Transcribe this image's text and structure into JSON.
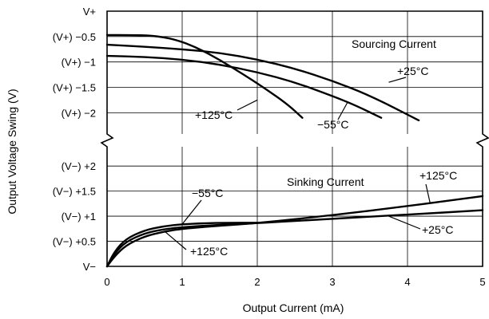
{
  "chart_data": {
    "type": "line",
    "xlabel": "Output Current (mA)",
    "ylabel": "Output Voltage Swing (V)",
    "x_ticks": [
      "0",
      "1",
      "2",
      "3",
      "4",
      "5"
    ],
    "xlim": [
      0,
      5
    ],
    "axis_break": true,
    "grid": true,
    "panels": [
      {
        "name": "sourcing",
        "label": "Sourcing Current",
        "y_ticks": [
          "V+",
          "(V+) −0.5",
          "(V+) −1",
          "(V+) −1.5",
          "(V+) −2"
        ],
        "ylim": [
          -2.45,
          0
        ],
        "series": [
          {
            "name": "+125°C",
            "x": [
              0,
              0.3,
              0.6,
              0.9,
              1.2,
              1.5,
              1.8,
              2.1,
              2.4,
              2.6
            ],
            "y": [
              -0.47,
              -0.47,
              -0.48,
              -0.55,
              -0.72,
              -0.96,
              -1.23,
              -1.52,
              -1.83,
              -2.1
            ]
          },
          {
            "name": "−55°C",
            "x": [
              0,
              0.5,
              1,
              1.5,
              2,
              2.5,
              3,
              3.3,
              3.65
            ],
            "y": [
              -0.88,
              -0.9,
              -0.95,
              -1.05,
              -1.2,
              -1.4,
              -1.67,
              -1.85,
              -2.1
            ]
          },
          {
            "name": "+25°C",
            "x": [
              0,
              0.5,
              1,
              1.5,
              2,
              2.5,
              3,
              3.5,
              4.15
            ],
            "y": [
              -0.66,
              -0.7,
              -0.75,
              -0.82,
              -0.95,
              -1.13,
              -1.37,
              -1.66,
              -2.15
            ]
          }
        ],
        "labels": [
          {
            "text": "+125°C",
            "target": [
              2.0,
              -1.75
            ]
          },
          {
            "text": "−55°C",
            "target": [
              3.2,
              -1.8
            ]
          },
          {
            "text": "+25°C",
            "target": [
              3.75,
              -1.4
            ]
          }
        ]
      },
      {
        "name": "sinking",
        "label": "Sinking Current",
        "y_ticks": [
          "V−",
          "(V−) +0.5",
          "(V−) +1",
          "(V−) +1.5",
          "(V−) +2"
        ],
        "ylim": [
          0,
          2.4
        ],
        "series": [
          {
            "name": "−55°C",
            "x": [
              0,
              0.1,
              0.25,
              0.5,
              0.75,
              1,
              1.3,
              1.6,
              2
            ],
            "y": [
              0,
              0.3,
              0.55,
              0.72,
              0.8,
              0.84,
              0.86,
              0.87,
              0.87
            ]
          },
          {
            "name": "+25°C",
            "x": [
              0,
              0.1,
              0.25,
              0.5,
              0.75,
              1,
              1.5,
              2,
              3,
              4,
              5
            ],
            "y": [
              0,
              0.26,
              0.49,
              0.66,
              0.74,
              0.78,
              0.83,
              0.86,
              0.95,
              1.03,
              1.12
            ]
          },
          {
            "name": "+125°C",
            "x": [
              0,
              0.1,
              0.25,
              0.5,
              0.75,
              1,
              1.5,
              2,
              3,
              4,
              5
            ],
            "y": [
              0,
              0.2,
              0.42,
              0.6,
              0.69,
              0.75,
              0.81,
              0.86,
              1.02,
              1.2,
              1.4
            ]
          }
        ],
        "labels": [
          {
            "text": "−55°C",
            "target": [
              1.0,
              0.84
            ]
          },
          {
            "text": "+25°C",
            "target": [
              3.75,
              1.0
            ]
          },
          {
            "text": "+125°C",
            "target": [
              4.3,
              1.27
            ]
          },
          {
            "text": "+125°C",
            "target": [
              0.78,
              0.68
            ]
          }
        ]
      }
    ]
  }
}
